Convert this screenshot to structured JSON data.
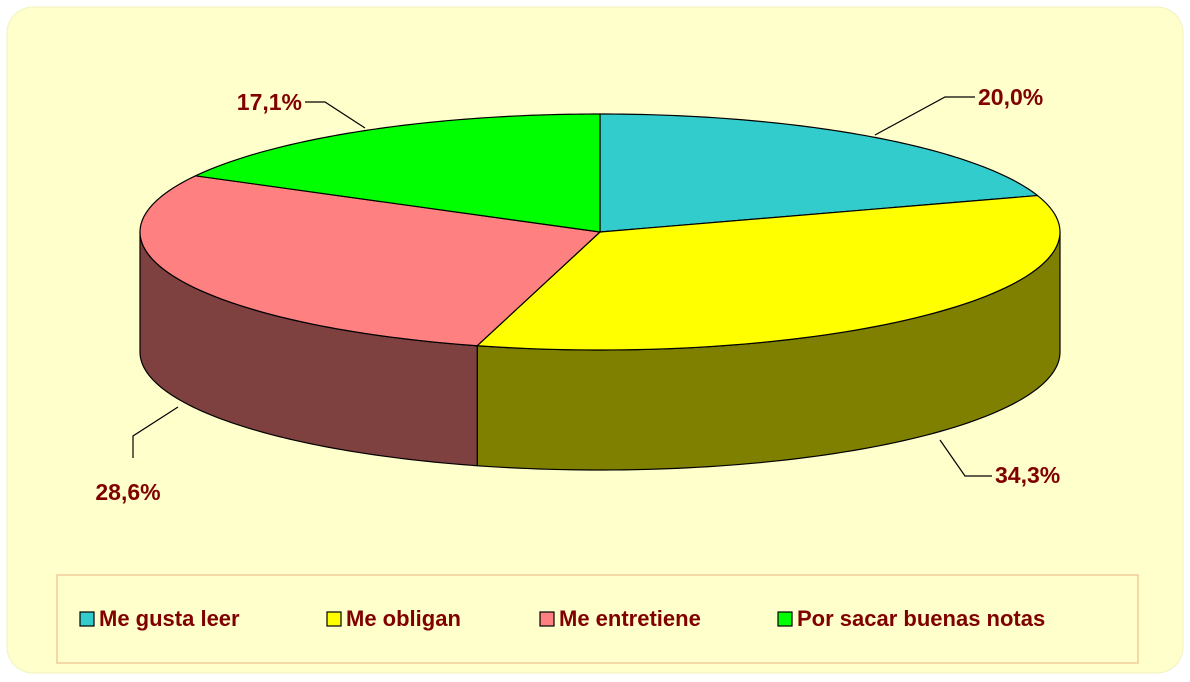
{
  "chart_data": {
    "type": "pie",
    "categories": [
      "Me gusta leer",
      "Me obligan",
      "Me entretiene",
      "Por sacar buenas notas"
    ],
    "values": [
      20.0,
      34.3,
      28.6,
      17.1
    ],
    "value_labels": [
      "20,0%",
      "34,3%",
      "28,6%",
      "17,1%"
    ],
    "colors": [
      "#33CCCC",
      "#FFFF00",
      "#FF8080",
      "#00FF00"
    ],
    "legend": "bottom"
  }
}
